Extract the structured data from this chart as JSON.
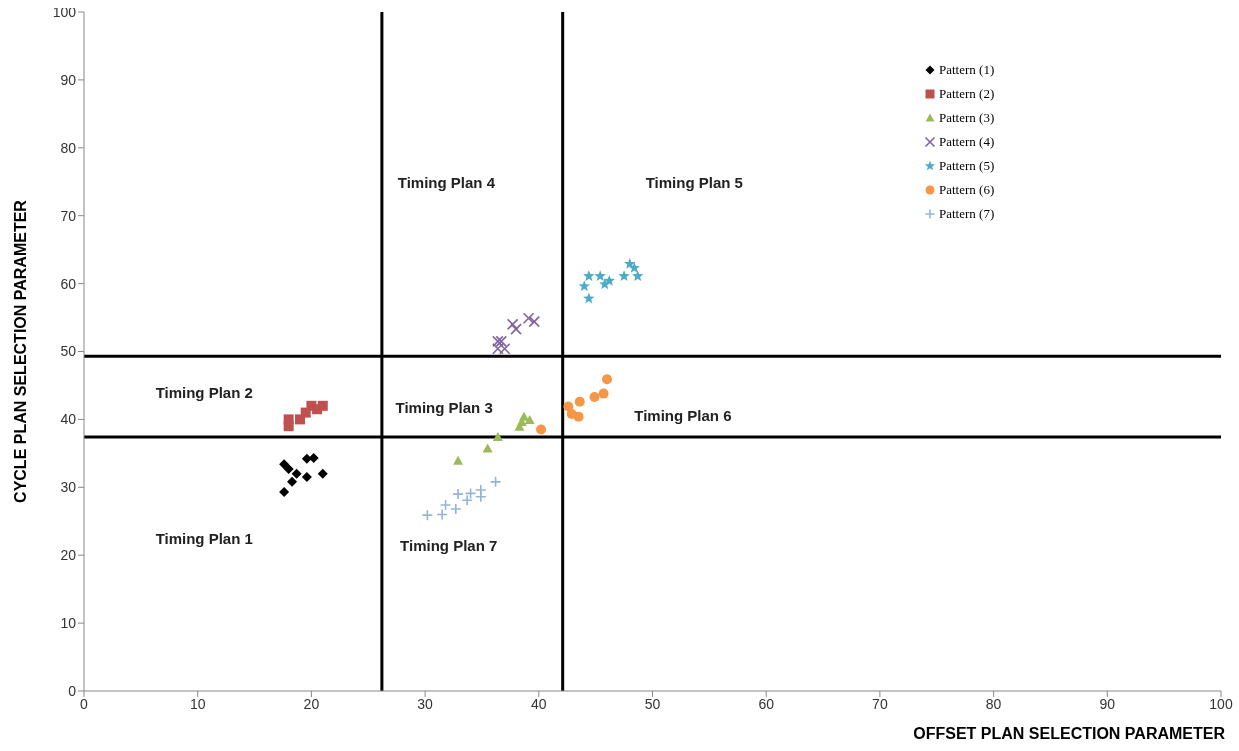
{
  "chart_data": {
    "type": "scatter",
    "xlabel": "OFFSET PLAN SELECTION PARAMETER",
    "ylabel": "CYCLE PLAN SELECTION PARAMETER",
    "xlim": [
      0,
      100
    ],
    "ylim": [
      0,
      100
    ],
    "xticks": [
      0,
      10,
      20,
      30,
      40,
      50,
      60,
      70,
      80,
      90,
      100
    ],
    "yticks": [
      0,
      10,
      20,
      30,
      40,
      50,
      60,
      70,
      80,
      90,
      100
    ],
    "grid": false,
    "legend": "top right",
    "series": [
      {
        "name": "Pattern (1)",
        "color": "#000000",
        "marker": "diamond",
        "x": [
          17.6,
          18.0,
          18.7,
          19.6,
          20.2,
          19.6,
          21.0,
          18.3,
          17.6
        ],
        "values": [
          33.4,
          32.7,
          32.0,
          34.2,
          34.3,
          31.5,
          32.0,
          30.8,
          29.3
        ]
      },
      {
        "name": "Pattern (2)",
        "color": "#c0504d",
        "marker": "square",
        "x": [
          18.0,
          18.0,
          19.0,
          19.5,
          20.0,
          21.0,
          20.5
        ],
        "values": [
          39.0,
          40.0,
          40.0,
          41.0,
          42.0,
          42.0,
          41.5
        ]
      },
      {
        "name": "Pattern (3)",
        "color": "#9bbb59",
        "marker": "triangle",
        "x": [
          32.9,
          35.5,
          36.4,
          38.3,
          39.2,
          38.5,
          38.7
        ],
        "values": [
          33.9,
          35.7,
          37.4,
          38.9,
          39.9,
          39.6,
          40.4
        ]
      },
      {
        "name": "Pattern (4)",
        "color": "#8064a2",
        "marker": "cross",
        "x": [
          36.4,
          36.7,
          37.0,
          37.7,
          38.0,
          39.1,
          39.6,
          36.4
        ],
        "values": [
          50.4,
          51.5,
          50.4,
          54.0,
          53.3,
          54.9,
          54.4,
          51.5
        ]
      },
      {
        "name": "Pattern (5)",
        "color": "#4bacc6",
        "marker": "star",
        "x": [
          44.0,
          44.4,
          44.4,
          45.4,
          45.8,
          46.2,
          47.5,
          48.0,
          48.4,
          48.7
        ],
        "values": [
          59.6,
          61.1,
          57.8,
          61.1,
          59.9,
          60.4,
          61.1,
          62.9,
          62.3,
          61.1
        ]
      },
      {
        "name": "Pattern (6)",
        "color": "#f79646",
        "marker": "circle",
        "x": [
          40.2,
          42.6,
          43.5,
          43.6,
          44.9,
          45.7,
          46.0,
          42.9
        ],
        "values": [
          38.5,
          41.9,
          40.4,
          42.6,
          43.3,
          43.8,
          45.9,
          40.8
        ]
      },
      {
        "name": "Pattern (7)",
        "color": "#95b3d7",
        "marker": "plus",
        "x": [
          30.2,
          31.5,
          31.8,
          32.7,
          32.9,
          33.7,
          34.0,
          34.9,
          34.9,
          36.2
        ],
        "values": [
          25.9,
          26.0,
          27.4,
          26.8,
          29.0,
          28.1,
          29.1,
          29.6,
          28.6,
          30.8
        ]
      }
    ],
    "ref_lines": [
      {
        "axis": "x",
        "value": 26.2,
        "color": "#000000"
      },
      {
        "axis": "x",
        "value": 42.1,
        "color": "#000000"
      },
      {
        "axis": "y",
        "value": 49.3,
        "color": "#000000"
      },
      {
        "axis": "y",
        "value": 37.4,
        "color": "#000000"
      }
    ],
    "annotations": [
      "Timing Plan 1",
      "Timing Plan 2",
      "Timing Plan 3",
      "Timing Plan 4",
      "Timing Plan 5",
      "Timing Plan 6",
      "Timing Plan 7"
    ]
  }
}
